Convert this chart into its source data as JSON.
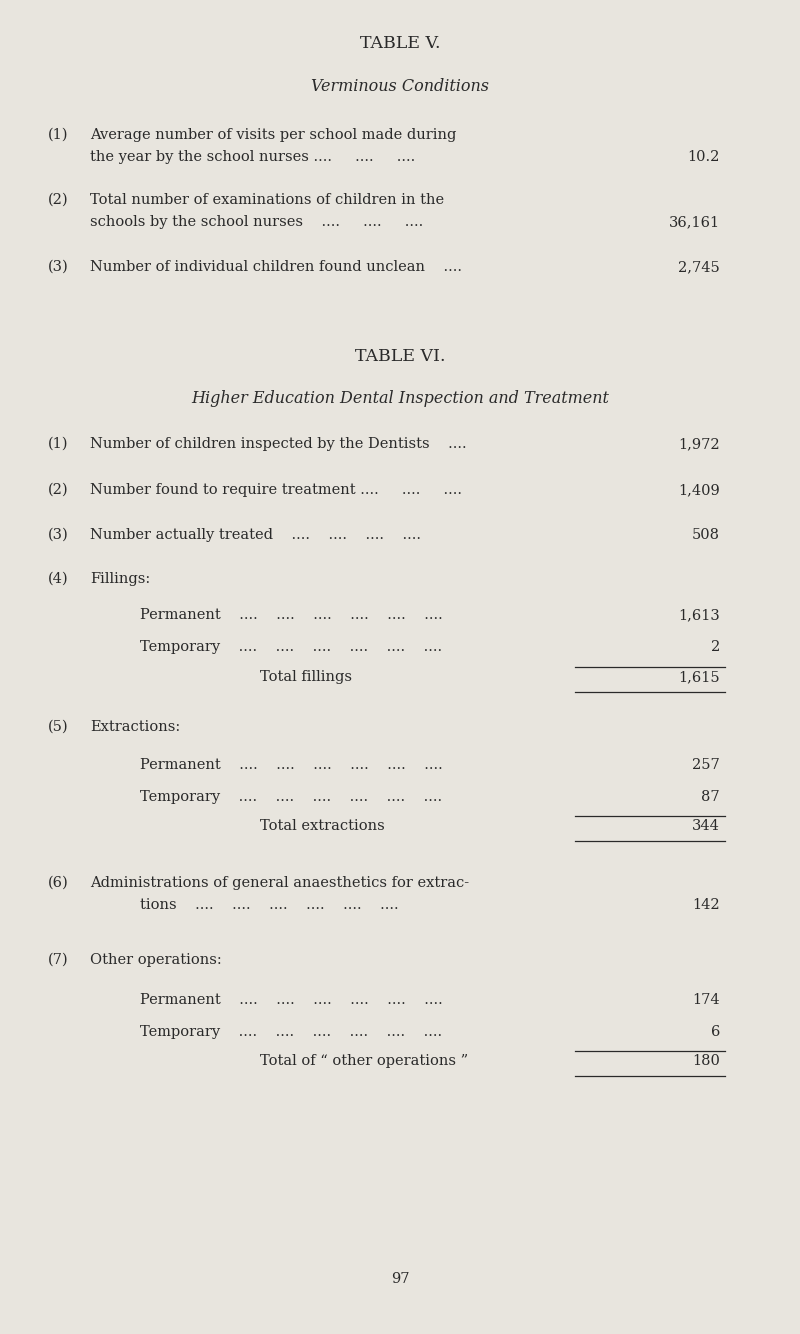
{
  "bg_color": "#e8e5de",
  "text_color": "#2a2a2a",
  "page_width": 8.0,
  "page_height": 13.34,
  "table5_title": "TABLE V.",
  "table5_subtitle": "Verminous Conditions",
  "table6_title": "TABLE VI.",
  "table6_subtitle": "Higher Education Dental Inspection and Treatment",
  "page_number": "97",
  "font_size_title": 12.5,
  "font_size_subtitle": 11.5,
  "font_size_body": 10.5
}
